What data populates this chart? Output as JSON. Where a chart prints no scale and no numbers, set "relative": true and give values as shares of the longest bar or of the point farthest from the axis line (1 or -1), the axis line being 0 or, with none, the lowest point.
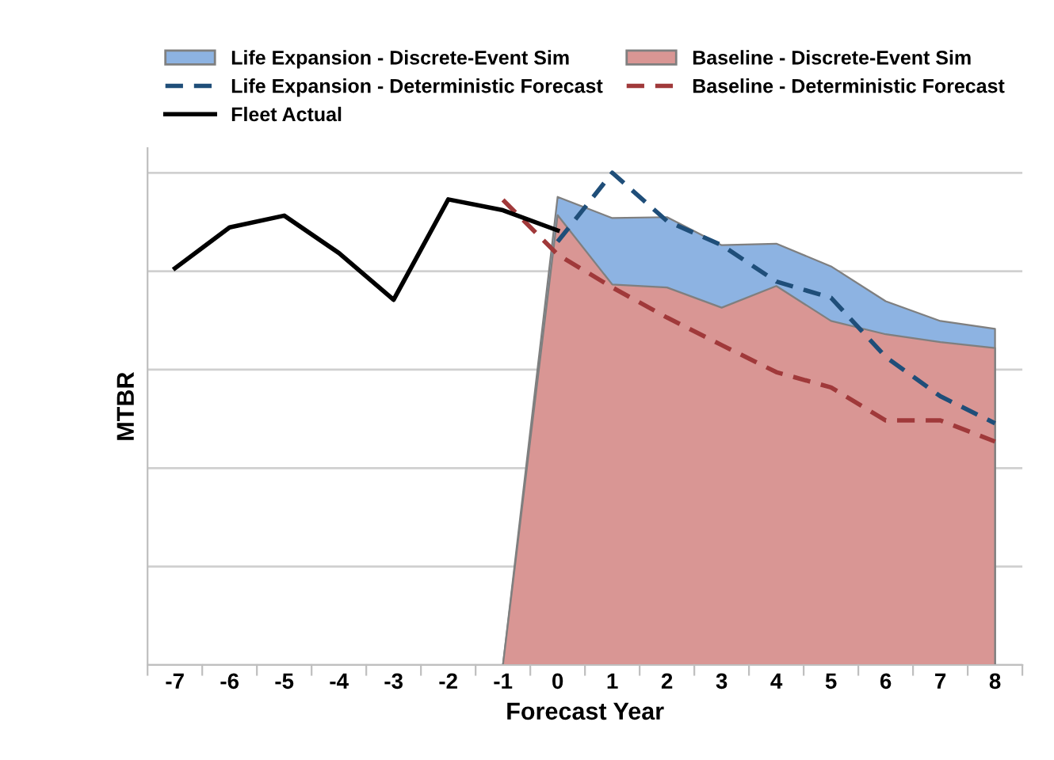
{
  "chart_data": {
    "type": "line",
    "xlabel": "Forecast Year",
    "ylabel": "MTBR",
    "relative": true,
    "grid": "y",
    "legend": "top",
    "categories": [
      "-7",
      "-6",
      "-5",
      "-4",
      "-3",
      "-2",
      "-1",
      "0",
      "1",
      "2",
      "3",
      "4",
      "5",
      "6",
      "7",
      "8"
    ],
    "series": [
      {
        "name": "Life Expansion - Discrete-Event Sim",
        "type": "area",
        "color": "#8db3e2",
        "values": [
          null,
          null,
          null,
          null,
          null,
          null,
          0,
          0.951,
          0.908,
          0.91,
          0.853,
          0.856,
          0.81,
          0.739,
          0.699,
          0.683
        ]
      },
      {
        "name": "Baseline - Discrete-Event Sim",
        "type": "area",
        "color": "#d99694",
        "values": [
          null,
          null,
          null,
          null,
          null,
          null,
          0,
          0.914,
          0.773,
          0.767,
          0.726,
          0.77,
          0.699,
          0.672,
          0.656,
          0.644
        ]
      },
      {
        "name": "Life Expansion - Deterministic Forecast",
        "type": "line",
        "line_style": "dashed",
        "color": "#1f4e79",
        "values": [
          null,
          null,
          null,
          null,
          null,
          null,
          null,
          0.86,
          1,
          0.902,
          0.853,
          0.779,
          0.746,
          0.626,
          0.546,
          0.491
        ]
      },
      {
        "name": "Baseline - Deterministic Forecast",
        "type": "line",
        "line_style": "dashed",
        "color": "#a0393a",
        "values": [
          null,
          null,
          null,
          null,
          null,
          null,
          0.945,
          0.834,
          0.767,
          0.706,
          0.65,
          0.595,
          0.564,
          0.497,
          0.497,
          0.454
        ]
      },
      {
        "name": "Fleet Actual",
        "line_style": "solid",
        "color": "#000000",
        "values": [
          0.806,
          0.889,
          0.913,
          0.837,
          0.742,
          0.946,
          0.924,
          0.883,
          null,
          null,
          null,
          null,
          null,
          null,
          null,
          null
        ]
      }
    ]
  }
}
